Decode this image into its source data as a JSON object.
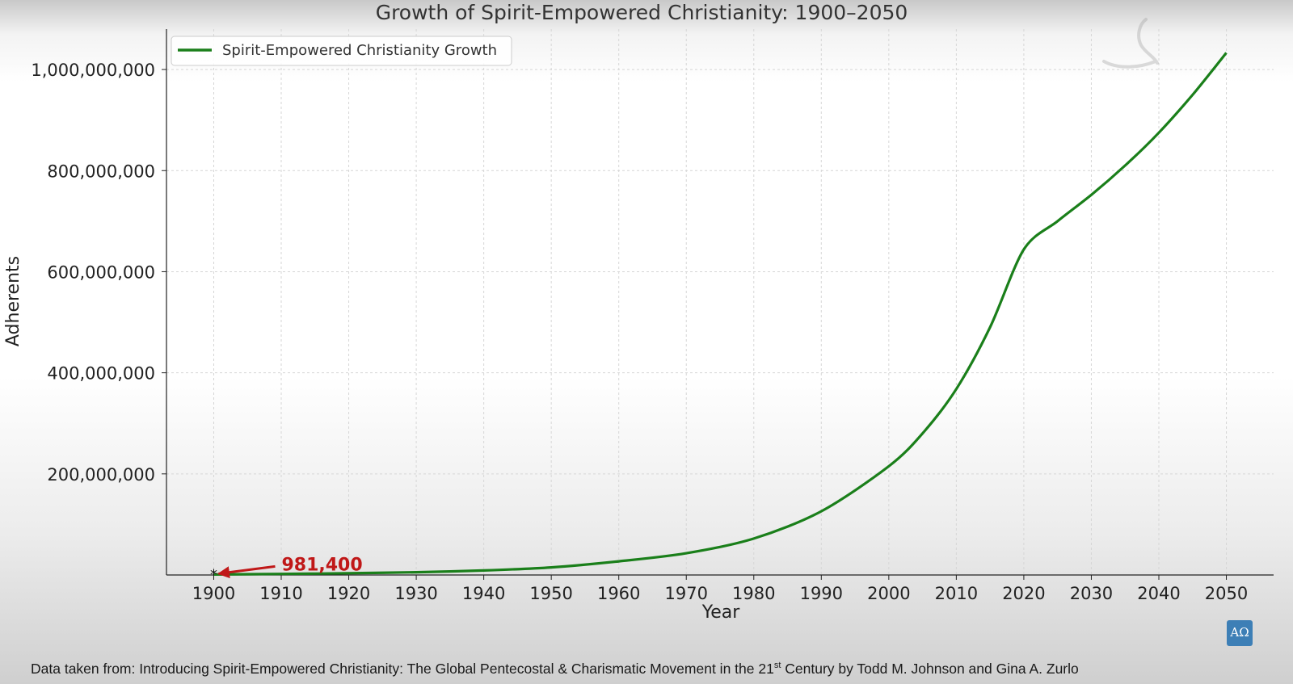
{
  "chart_data": {
    "type": "line",
    "title": "Growth of Spirit-Empowered Christianity: 1900–2050",
    "xlabel": "Year",
    "ylabel": "Adherents",
    "xlim": [
      1893,
      2057
    ],
    "ylim": [
      0,
      1080000000
    ],
    "x_ticks": [
      1900,
      1910,
      1920,
      1930,
      1940,
      1950,
      1960,
      1970,
      1980,
      1990,
      2000,
      2010,
      2020,
      2030,
      2040,
      2050
    ],
    "x_tick_labels": [
      "1900",
      "1910",
      "1920",
      "1930",
      "1940",
      "1950",
      "1960",
      "1970",
      "1980",
      "1990",
      "2000",
      "2010",
      "2020",
      "2030",
      "2040",
      "2050"
    ],
    "y_ticks": [
      200000000,
      400000000,
      600000000,
      800000000,
      1000000000
    ],
    "y_tick_labels": [
      "200,000,000",
      "400,000,000",
      "600,000,000",
      "800,000,000",
      "1,000,000,000"
    ],
    "grid": true,
    "legend_position": "top-left",
    "series": [
      {
        "name": "Spirit-Empowered Christianity Growth",
        "color": "#1a7f1a",
        "x": [
          1900,
          1910,
          1920,
          1930,
          1940,
          1950,
          1960,
          1970,
          1980,
          1990,
          2000,
          2005,
          2010,
          2015,
          2020,
          2025,
          2030,
          2035,
          2040,
          2045,
          2050
        ],
        "y": [
          981400,
          2000000,
          3500000,
          5500000,
          9000000,
          15000000,
          27000000,
          43000000,
          72000000,
          126000000,
          215000000,
          280000000,
          368000000,
          490000000,
          644000000,
          700000000,
          752000000,
          810000000,
          875000000,
          950000000,
          1033000000
        ]
      }
    ],
    "annotations": [
      {
        "text": "981,400",
        "x": 1900,
        "y": 981400,
        "color": "#c01818"
      }
    ]
  },
  "footer": {
    "source_prefix": "Data taken from: Introducing Spirit-Empowered Christianity: The Global Pentecostal & Charismatic Movement in the 21",
    "source_sup": "st",
    "source_suffix": " Century by Todd M. Johnson and Gina A. Zurlo"
  },
  "badge": {
    "label": "ΑΩ"
  }
}
